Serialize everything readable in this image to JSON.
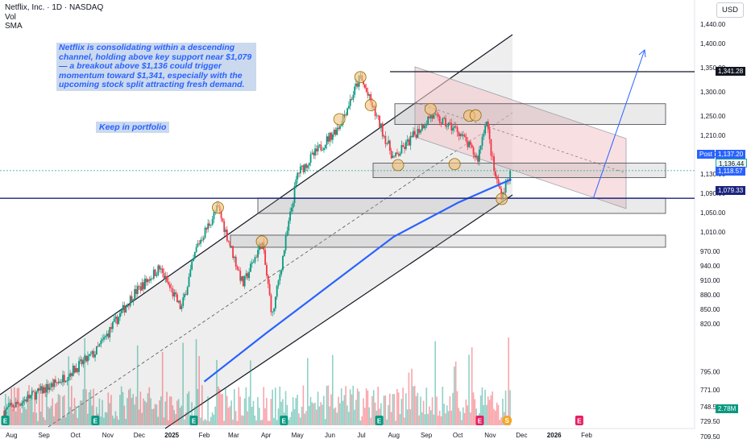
{
  "legend": {
    "symbol": "Netflix, Inc. · 1D · NASDAQ",
    "vol": "Vol",
    "sma": "SMA"
  },
  "currency_button": "USD",
  "annotations": {
    "note": "Netflix is consolidating within a descending channel, holding above key support near $1,079 — a breakout above $1,136 could trigger momentum toward $1,341, especially with the upcoming stock split attracting fresh demand.",
    "keep": "Keep in portfolio"
  },
  "price_tags": {
    "resistance": "1,341.28",
    "post_label": "Post",
    "post": "1,137.20",
    "last": "1,136.44",
    "sma": "1,118.57",
    "support": "1,079.33",
    "volume": "2.78M"
  },
  "colors": {
    "up": "#089981",
    "down": "#f23645",
    "sma": "#2962ff",
    "support_line": "#1a237e",
    "channel_fill": "#f3c9cf"
  },
  "chart_data": {
    "type": "candlestick",
    "y_ticks": [
      "1,440.00",
      "1,400.00",
      "1,350.00",
      "1,300.00",
      "1,250.00",
      "1,210.00",
      "1,170.00",
      "1,130.00",
      "1,090.00",
      "1,050.00",
      "1,010.00",
      "970.00",
      "940.00",
      "910.00",
      "880.00",
      "850.00",
      "820.00",
      "795.00",
      "771.00",
      "748.50",
      "729.50",
      "709.50"
    ],
    "x_ticks": [
      "Aug",
      "Sep",
      "Oct",
      "Nov",
      "Dec",
      "2025",
      "Feb",
      "Mar",
      "Apr",
      "May",
      "Jun",
      "Jul",
      "Aug",
      "Sep",
      "Oct",
      "Nov",
      "Dec",
      "2026",
      "Feb"
    ],
    "ylim": [
      700,
      1460
    ],
    "horizontal_levels": {
      "resistance": 1341.28,
      "support": 1079.33
    },
    "zones": [
      {
        "low": 1232,
        "high": 1275
      },
      {
        "low": 1122,
        "high": 1152
      },
      {
        "low": 1048,
        "high": 1080
      },
      {
        "low": 978,
        "high": 1003
      }
    ],
    "anchors": [
      {
        "date": "2024-07-25",
        "price": 640
      },
      {
        "date": "2024-09-15",
        "price": 700
      },
      {
        "date": "2024-10-20",
        "price": 760
      },
      {
        "date": "2024-11-25",
        "price": 880
      },
      {
        "date": "2024-12-20",
        "price": 935
      },
      {
        "date": "2025-01-10",
        "price": 850
      },
      {
        "date": "2025-01-25",
        "price": 980
      },
      {
        "date": "2025-02-14",
        "price": 1060
      },
      {
        "date": "2025-03-10",
        "price": 900
      },
      {
        "date": "2025-03-28",
        "price": 990
      },
      {
        "date": "2025-04-07",
        "price": 835
      },
      {
        "date": "2025-05-01",
        "price": 1130
      },
      {
        "date": "2025-06-10",
        "price": 1230
      },
      {
        "date": "2025-06-30",
        "price": 1330
      },
      {
        "date": "2025-08-01",
        "price": 1160
      },
      {
        "date": "2025-09-05",
        "price": 1250
      },
      {
        "date": "2025-10-01",
        "price": 1220
      },
      {
        "date": "2025-10-20",
        "price": 1160
      },
      {
        "date": "2025-10-28",
        "price": 1245
      },
      {
        "date": "2025-11-05",
        "price": 1130
      },
      {
        "date": "2025-11-12",
        "price": 1085
      },
      {
        "date": "2025-11-21",
        "price": 1136.44
      }
    ],
    "sma": [
      {
        "date": "2025-02-01",
        "price": 700
      },
      {
        "date": "2025-04-01",
        "price": 800
      },
      {
        "date": "2025-06-01",
        "price": 900
      },
      {
        "date": "2025-08-01",
        "price": 1000
      },
      {
        "date": "2025-10-01",
        "price": 1070
      },
      {
        "date": "2025-11-21",
        "price": 1118.57
      }
    ]
  }
}
